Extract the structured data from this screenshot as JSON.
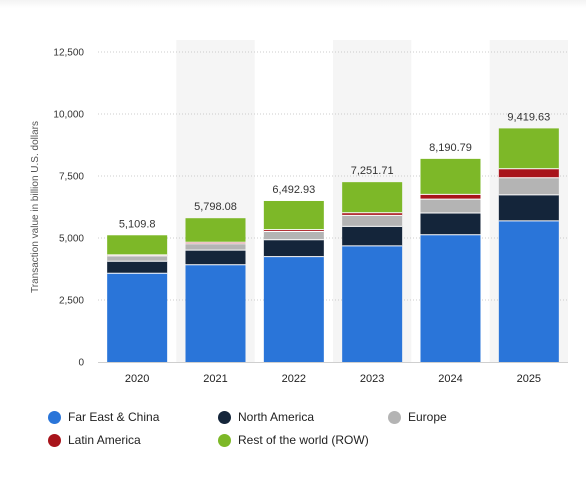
{
  "chart_data": {
    "type": "bar",
    "stacked": true,
    "ylabel": "Transaction value in billion U.S. dollars",
    "ylim": [
      0,
      12500
    ],
    "yticks": [
      "0",
      "2,500",
      "5,000",
      "7,500",
      "10,000",
      "12,500"
    ],
    "ytick_values": [
      0,
      2500,
      5000,
      7500,
      10000,
      12500
    ],
    "categories": [
      "2020",
      "2021",
      "2022",
      "2023",
      "2024",
      "2025"
    ],
    "totals": [
      "5,109.8",
      "5,798.08",
      "6,492.93",
      "7,251.71",
      "8,190.79",
      "9,419.63"
    ],
    "total_values": [
      5109.8,
      5798.08,
      6492.93,
      7251.71,
      8190.79,
      9419.63
    ],
    "grid": true,
    "legend_position": "bottom",
    "series": [
      {
        "name": "Far East & China",
        "color": "#2a75d9",
        "values": [
          3580,
          3920,
          4250,
          4680,
          5130,
          5690
        ]
      },
      {
        "name": "North America",
        "color": "#14253a",
        "values": [
          480,
          590,
          680,
          790,
          880,
          1050
        ]
      },
      {
        "name": "Europe",
        "color": "#b4b4b4",
        "values": [
          220,
          260,
          330,
          440,
          560,
          690
        ]
      },
      {
        "name": "Latin America",
        "color": "#a8141b",
        "values": [
          40,
          60,
          80,
          110,
          190,
          360
        ]
      },
      {
        "name": "Rest of the world (ROW)",
        "color": "#7db828",
        "values": [
          789.8,
          968.08,
          1152.93,
          1231.71,
          1430.79,
          1629.63
        ]
      }
    ]
  },
  "legend": {
    "items": [
      {
        "label": "Far East & China",
        "color": "#2a75d9"
      },
      {
        "label": "North America",
        "color": "#14253a"
      },
      {
        "label": "Europe",
        "color": "#b4b4b4"
      },
      {
        "label": "Latin America",
        "color": "#a8141b"
      },
      {
        "label": "Rest of the world (ROW)",
        "color": "#7db828"
      }
    ]
  }
}
